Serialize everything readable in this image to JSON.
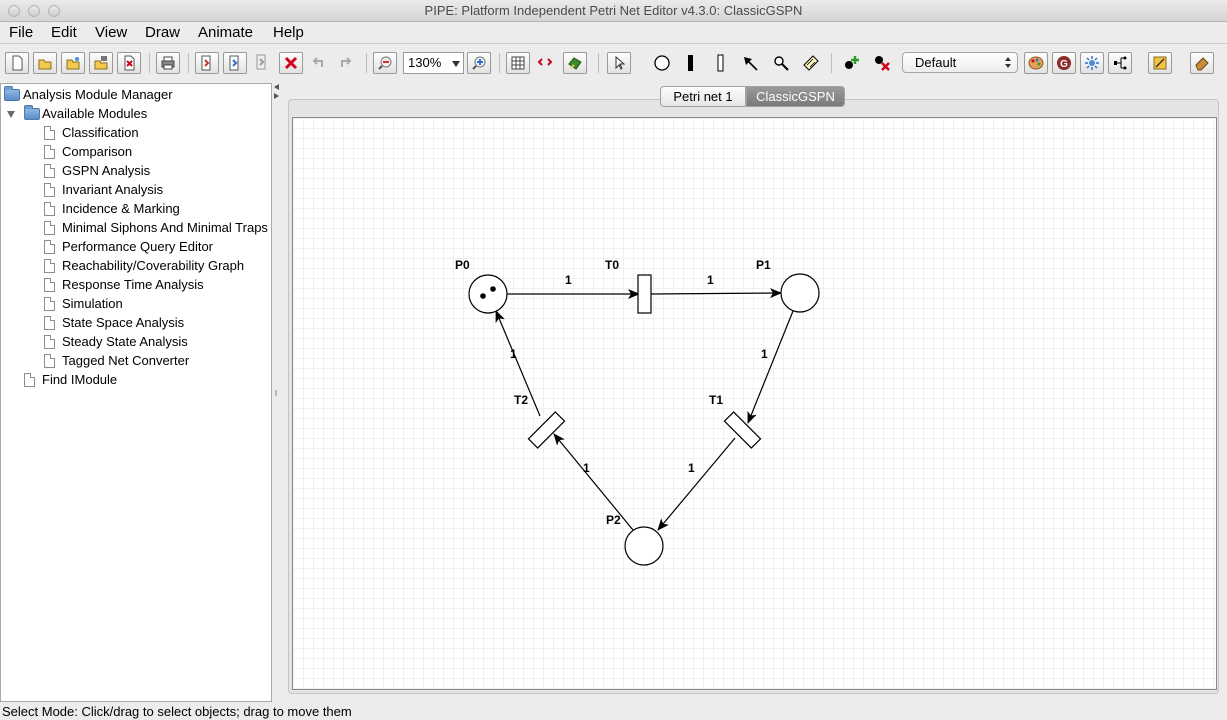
{
  "window": {
    "title": "PIPE: Platform Independent Petri Net Editor v4.3.0: ClassicGSPN"
  },
  "menu": [
    "File",
    "Edit",
    "View",
    "Draw",
    "Animate",
    "Help"
  ],
  "toolbar": {
    "zoom_value": "130%",
    "token_class": "Default",
    "icons": [
      "new-file-icon",
      "open-folder-icon",
      "open-example-icon",
      "save-icon",
      "close-file-icon",
      "print-icon",
      "export-icon",
      "import-icon",
      "save-as-icon",
      "delete-icon",
      "undo-icon",
      "redo-icon",
      "zoom-out-icon",
      "zoom-in-icon",
      "toggle-grid-icon",
      "drag-mode-icon",
      "start-animation-icon",
      "select-pointer-icon",
      "place-tool-icon",
      "immediate-transition-icon",
      "timed-transition-icon",
      "arc-tool-icon",
      "inhibitor-arc-icon",
      "annotation-icon",
      "add-token-icon",
      "delete-token-icon",
      "token-colour-icon",
      "guard-icon",
      "rate-parameter-icon",
      "group-transitions-icon",
      "edit-functions-icon",
      "eraser-icon"
    ]
  },
  "module_tree": {
    "root": "Analysis Module Manager",
    "folder": "Available Modules",
    "modules": [
      "Classification",
      "Comparison",
      "GSPN Analysis",
      "Invariant Analysis",
      "Incidence & Marking",
      "Minimal Siphons And Minimal Traps",
      "Performance Query Editor",
      "Reachability/Coverability Graph",
      "Response Time Analysis",
      "Simulation",
      "State Space Analysis",
      "Steady State Analysis",
      "Tagged Net Converter"
    ],
    "extra": "Find IModule"
  },
  "tabs": [
    {
      "label": "Petri net 1",
      "active": false
    },
    {
      "label": "ClassicGSPN",
      "active": true
    }
  ],
  "petri_net": {
    "places": [
      {
        "id": "P0",
        "label": "P0",
        "tokens": 2
      },
      {
        "id": "P1",
        "label": "P1",
        "tokens": 0
      },
      {
        "id": "P2",
        "label": "P2",
        "tokens": 0
      }
    ],
    "transitions": [
      {
        "id": "T0",
        "label": "T0",
        "orientation": "vertical"
      },
      {
        "id": "T1",
        "label": "T1",
        "orientation": "diagonal"
      },
      {
        "id": "T2",
        "label": "T2",
        "orientation": "diagonal"
      }
    ],
    "arcs": [
      {
        "from": "P0",
        "to": "T0",
        "weight": "1"
      },
      {
        "from": "T0",
        "to": "P1",
        "weight": "1"
      },
      {
        "from": "P1",
        "to": "T1",
        "weight": "1"
      },
      {
        "from": "T1",
        "to": "P2",
        "weight": "1"
      },
      {
        "from": "P2",
        "to": "T2",
        "weight": "1"
      },
      {
        "from": "T2",
        "to": "P0",
        "weight": "1"
      }
    ]
  },
  "status": "Select Mode: Click/drag to select objects; drag to move them"
}
